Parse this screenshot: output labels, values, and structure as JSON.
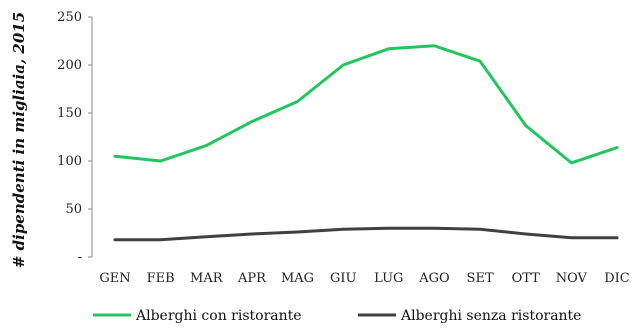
{
  "chart_data": {
    "type": "line",
    "ylabel": "# dipendenti in migliaia, 2015",
    "xlabel": "",
    "categories": [
      "GEN",
      "FEB",
      "MAR",
      "APR",
      "MAG",
      "GIU",
      "LUG",
      "AGO",
      "SET",
      "OTT",
      "NOV",
      "DIC"
    ],
    "ylim": [
      0,
      250
    ],
    "yticks": [
      "-",
      "50",
      "100",
      "150",
      "200",
      "250"
    ],
    "grid": false,
    "legend_position": "bottom",
    "series": [
      {
        "name": "Alberghi con ristorante",
        "color": "#22c55e",
        "values": [
          105,
          100,
          116,
          141,
          162,
          200,
          217,
          220,
          204,
          137,
          98,
          114
        ]
      },
      {
        "name": "Alberghi senza ristorante",
        "color": "#404040",
        "values": [
          18,
          18,
          21,
          24,
          26,
          29,
          30,
          30,
          29,
          24,
          20,
          20
        ]
      }
    ]
  }
}
